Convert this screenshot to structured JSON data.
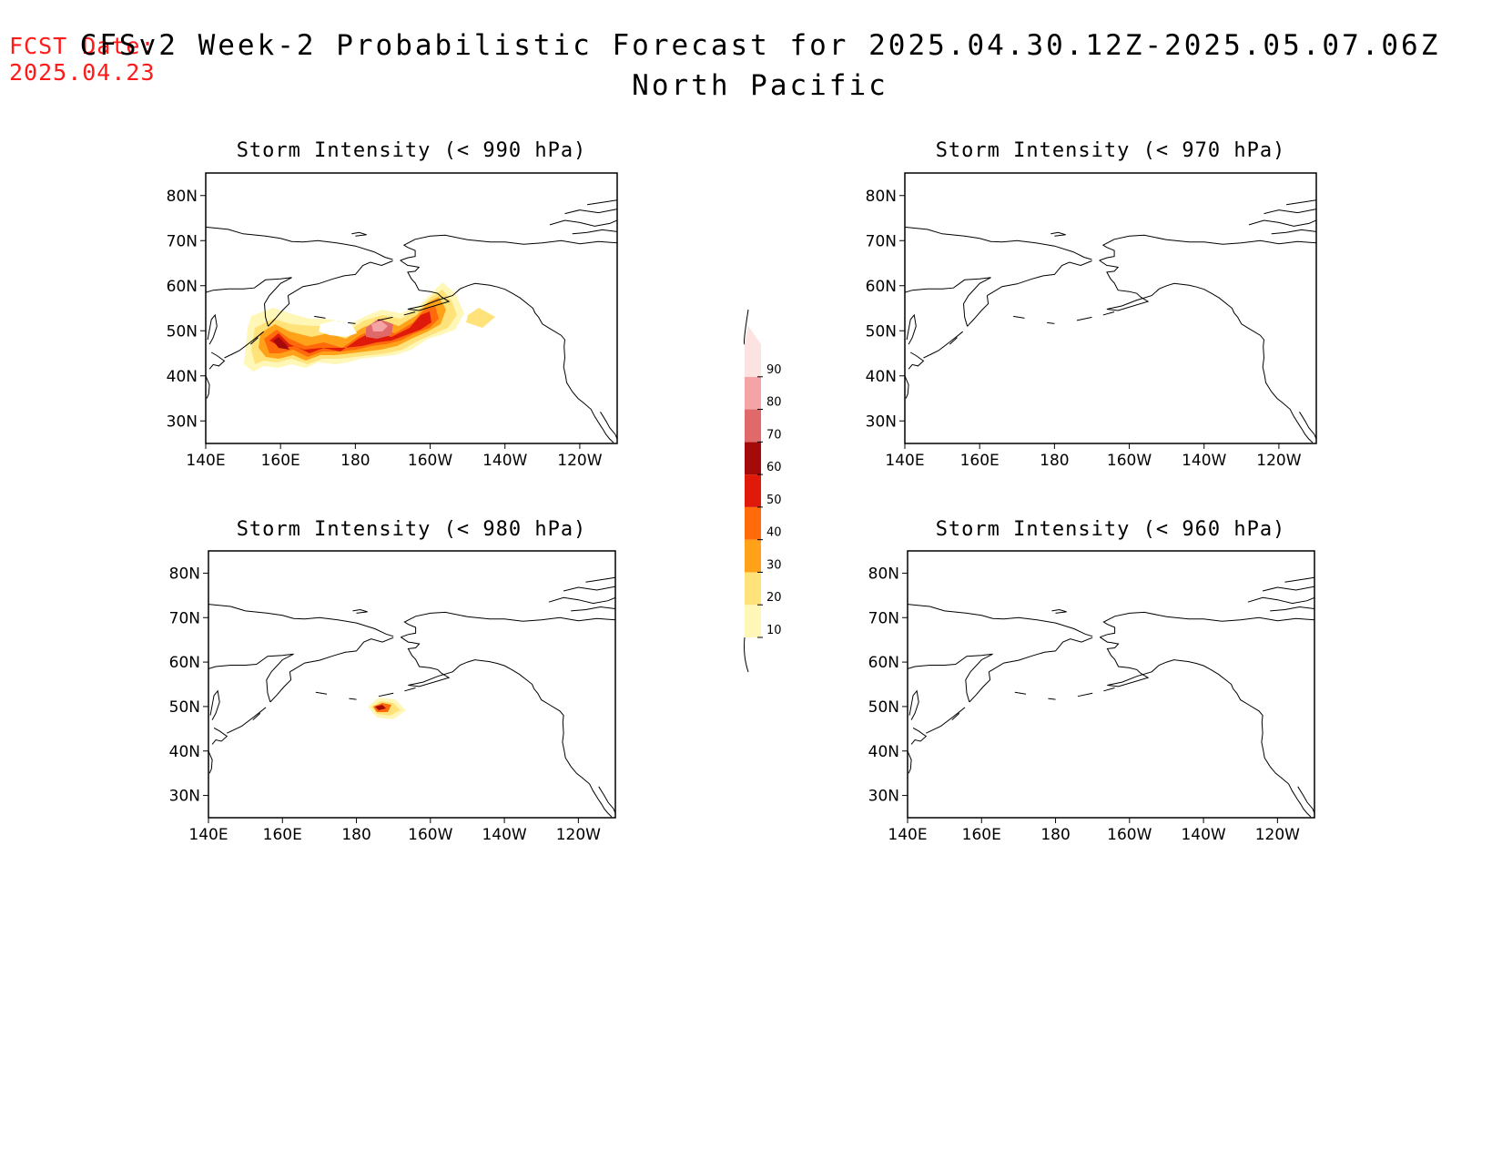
{
  "header": {
    "fcst_label": "FCST Date:",
    "fcst_date": "2025.04.23",
    "title": "CFSv2 Week-2 Probabilistic Forecast for 2025.04.30.12Z-2025.05.07.06Z",
    "region": "North Pacific"
  },
  "axes": {
    "lon_ticks": [
      "140E",
      "160E",
      "180",
      "160W",
      "140W",
      "120W"
    ],
    "lat_ticks": [
      "30N",
      "40N",
      "50N",
      "60N",
      "70N",
      "80N"
    ]
  },
  "panels": [
    {
      "id": "p990",
      "title": "Storm Intensity (< 990 hPa)"
    },
    {
      "id": "p970",
      "title": "Storm Intensity (< 970 hPa)"
    },
    {
      "id": "p980",
      "title": "Storm Intensity (< 980 hPa)"
    },
    {
      "id": "p960",
      "title": "Storm Intensity (< 960 hPa)"
    }
  ],
  "colorbar": {
    "levels": [
      "10",
      "20",
      "30",
      "40",
      "50",
      "60",
      "70",
      "80",
      "90"
    ],
    "colors": [
      "#fff7b8",
      "#ffe27a",
      "#ffa21a",
      "#ff6a0a",
      "#e01a0a",
      "#a50a0a",
      "#e06a6a",
      "#f4a4a4",
      "#fde2e2"
    ]
  }
}
